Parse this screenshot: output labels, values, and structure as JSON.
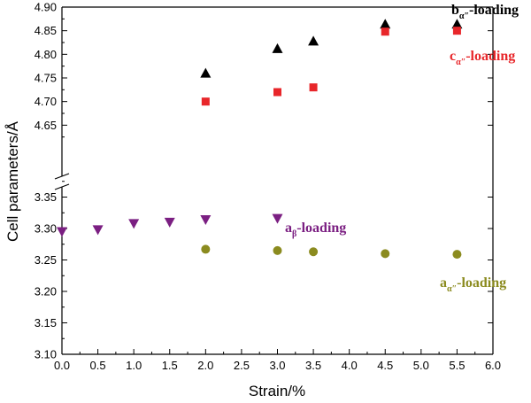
{
  "chart_data": {
    "type": "scatter",
    "xlabel": "Strain/%",
    "ylabel": "Cell parameters/Å",
    "xlim": [
      0.0,
      6.0
    ],
    "x_ticks": [
      "0.0",
      "0.5",
      "1.0",
      "1.5",
      "2.0",
      "2.5",
      "3.0",
      "3.5",
      "4.0",
      "4.5",
      "5.0",
      "5.5",
      "6.0"
    ],
    "y_axis_break": true,
    "ylim_upper": [
      4.6,
      4.9
    ],
    "y_ticks_upper": [
      "4.65",
      "4.70",
      "4.75",
      "4.80",
      "4.85",
      "4.90"
    ],
    "ylim_lower": [
      3.1,
      3.4
    ],
    "y_ticks_lower": [
      "3.10",
      "3.15",
      "3.20",
      "3.25",
      "3.30",
      "3.35"
    ],
    "series": [
      {
        "name": "bα″-loading",
        "label_main": "b",
        "label_sub": "α″",
        "label_rest": "-loading",
        "marker": "triangle-up",
        "color": "#000000",
        "x": [
          2.0,
          3.0,
          3.5,
          4.5,
          5.5
        ],
        "y": [
          4.76,
          4.812,
          4.828,
          4.864,
          4.864
        ]
      },
      {
        "name": "cα″-loading",
        "label_main": "c",
        "label_sub": "α″",
        "label_rest": "-loading",
        "marker": "square",
        "color": "#e8262a",
        "x": [
          2.0,
          3.0,
          3.5,
          4.5,
          5.5
        ],
        "y": [
          4.7,
          4.72,
          4.73,
          4.848,
          4.85
        ]
      },
      {
        "name": "aβ-loading",
        "label_main": "a",
        "label_sub": "β",
        "label_rest": "-loading",
        "marker": "triangle-down",
        "color": "#7b1f82",
        "x": [
          0.0,
          0.5,
          1.0,
          1.5,
          2.0,
          3.0
        ],
        "y": [
          3.295,
          3.298,
          3.308,
          3.31,
          3.314,
          3.316
        ]
      },
      {
        "name": "aα″-loading",
        "label_main": "a",
        "label_sub": "α″",
        "label_rest": "-loading",
        "marker": "circle",
        "color": "#8b8b1f",
        "x": [
          2.0,
          3.0,
          3.5,
          4.5,
          5.5
        ],
        "y": [
          3.267,
          3.265,
          3.263,
          3.26,
          3.259
        ]
      }
    ]
  }
}
